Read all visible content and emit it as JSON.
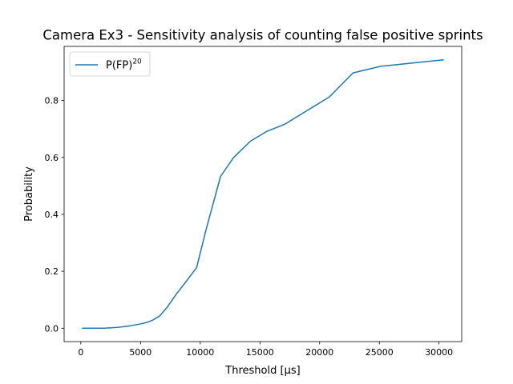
{
  "chart_data": {
    "type": "line",
    "title": "Camera Ex3 - Sensitivity analysis of counting false positive sprints",
    "xlabel": "Threshold [µs]",
    "ylabel": "Probability",
    "xlim": [
      -1400,
      31900
    ],
    "ylim": [
      -0.047,
      0.99
    ],
    "xticks": [
      0,
      5000,
      10000,
      15000,
      20000,
      25000,
      30000
    ],
    "xtick_labels": [
      "0",
      "5000",
      "10000",
      "15000",
      "20000",
      "25000",
      "30000"
    ],
    "yticks": [
      0.0,
      0.2,
      0.4,
      0.6,
      0.8
    ],
    "ytick_labels": [
      "0.0",
      "0.2",
      "0.4",
      "0.6",
      "0.8"
    ],
    "grid": false,
    "legend": {
      "placement": "upper-left"
    },
    "series": [
      {
        "name": "P(FP)",
        "name_superscript": "20",
        "color": "#1f77b4",
        "x": [
          100,
          1000,
          2000,
          2800,
          3500,
          4200,
          5000,
          5500,
          6000,
          6600,
          7200,
          8000,
          8800,
          9700,
          10500,
          11700,
          12800,
          14200,
          15600,
          17100,
          19000,
          20800,
          22800,
          25100,
          27400,
          29000,
          30400
        ],
        "y": [
          0.0,
          0.0,
          0.0,
          0.002,
          0.005,
          0.009,
          0.015,
          0.02,
          0.028,
          0.043,
          0.072,
          0.12,
          0.163,
          0.213,
          0.348,
          0.533,
          0.6,
          0.657,
          0.692,
          0.717,
          0.766,
          0.812,
          0.897,
          0.92,
          0.93,
          0.937,
          0.943
        ]
      }
    ]
  }
}
